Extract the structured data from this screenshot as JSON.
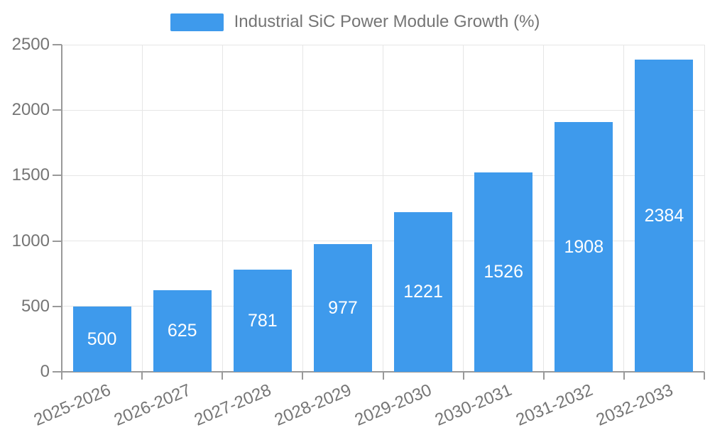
{
  "chart_data": {
    "type": "bar",
    "title": "Industrial SiC Power Module Growth (%)",
    "series_name": "Industrial SiC Power Module Growth (%)",
    "legend": [
      "Industrial SiC Power Module Growth (%)"
    ],
    "legend_position": "top-center",
    "categories": [
      "2025-2026",
      "2026-2027",
      "2027-2028",
      "2028-2029",
      "2029-2030",
      "2030-2031",
      "2031-2032",
      "2032-2033"
    ],
    "values": [
      500,
      625,
      781,
      977,
      1221,
      1526,
      1908,
      2384
    ],
    "value_labels_shown": true,
    "xlabel": "",
    "ylabel": "",
    "ylim": [
      0,
      2500
    ],
    "yticks": [
      0,
      500,
      1000,
      1500,
      2000,
      2500
    ],
    "grid": true,
    "colors": {
      "bar": "#3E9AEC",
      "value_label": "#FFFFFF",
      "axis": "#999999",
      "gridline": "#E6E6E6",
      "tick_text": "#757575",
      "background": "#FFFFFF"
    }
  }
}
